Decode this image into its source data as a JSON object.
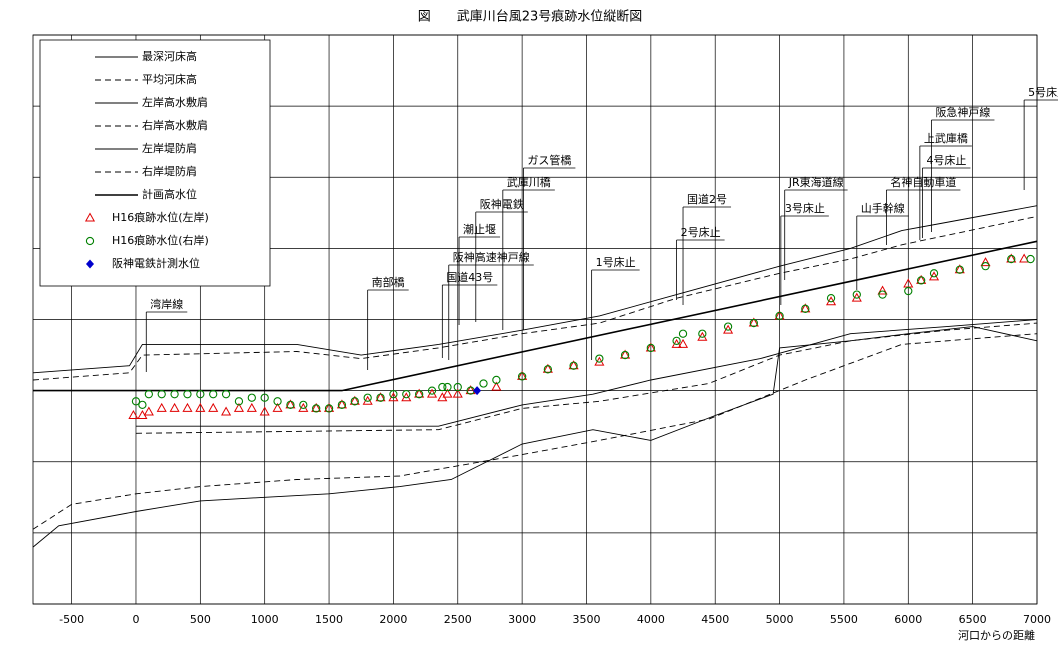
{
  "chart_data": {
    "type": "line",
    "title": "図　　武庫川台風23号痕跡水位縦断図",
    "x_label": "河口からの距離",
    "xlim": [
      -800,
      7000
    ],
    "xticks": [
      -500,
      0,
      500,
      1000,
      1500,
      2000,
      2500,
      3000,
      3500,
      4000,
      4500,
      5000,
      5500,
      6000,
      6500,
      7000
    ],
    "ylim": [
      -6,
      10
    ],
    "yticks": [
      -6,
      -4,
      -2,
      0,
      2,
      4,
      6,
      8,
      10
    ],
    "grid": true,
    "legend": "upper left",
    "series": [
      {
        "name": "最深河床高",
        "color": "#000000",
        "style": "solid",
        "x": [
          -800,
          -600,
          0,
          500,
          1000,
          1500,
          2050,
          2450,
          3000,
          3550,
          4000,
          4500,
          4950,
          5000,
          5550,
          6000,
          6500,
          7000
        ],
        "values": [
          -4.4,
          -3.8,
          -3.4,
          -3.1,
          -3.0,
          -2.9,
          -2.7,
          -2.5,
          -1.5,
          -1.1,
          -1.4,
          -0.7,
          -0.1,
          1.2,
          1.4,
          1.6,
          1.8,
          1.4
        ]
      },
      {
        "name": "平均河床高",
        "color": "#000000",
        "style": "dashed",
        "x": [
          -800,
          -500,
          0,
          500,
          1250,
          2050,
          3000,
          3600,
          4450,
          5200,
          5950,
          7000
        ],
        "values": [
          -3.9,
          -3.2,
          -2.9,
          -2.7,
          -2.5,
          -2.4,
          -1.8,
          -1.4,
          -0.8,
          0.3,
          1.3,
          1.6
        ]
      },
      {
        "name": "左岸高水敷肩",
        "color": "#000000",
        "style": "solid",
        "x": [
          0,
          2350,
          3000,
          3550,
          4000,
          4850,
          5550,
          6300,
          7000
        ],
        "values": [
          -1.0,
          -1.0,
          -0.4,
          -0.1,
          0.3,
          0.9,
          1.6,
          1.8,
          2.0
        ]
      },
      {
        "name": "右岸高水敷肩",
        "color": "#000000",
        "style": "dashed",
        "x": [
          0,
          2350,
          3000,
          3600,
          4450,
          5000,
          5550,
          6300,
          7000
        ],
        "values": [
          -1.2,
          -1.1,
          -0.5,
          -0.3,
          0.2,
          1.0,
          1.4,
          1.7,
          1.9
        ]
      },
      {
        "name": "左岸堤防肩",
        "color": "#000000",
        "style": "solid",
        "x": [
          -800,
          -50,
          50,
          1250,
          1750,
          2350,
          3000,
          3600,
          4200,
          5000,
          5550,
          5950,
          6250,
          7000
        ],
        "values": [
          0.5,
          0.7,
          1.3,
          1.3,
          1.0,
          1.3,
          1.7,
          2.1,
          2.7,
          3.5,
          4.0,
          4.5,
          4.7,
          5.2
        ]
      },
      {
        "name": "右岸堤防肩",
        "color": "#000000",
        "style": "dashed",
        "x": [
          -800,
          -50,
          50,
          1250,
          1750,
          2350,
          3000,
          3600,
          4200,
          5000,
          5550,
          5950,
          7000
        ],
        "values": [
          0.3,
          0.5,
          1.0,
          1.1,
          0.9,
          1.2,
          1.6,
          1.9,
          2.6,
          3.3,
          3.7,
          4.1,
          4.9
        ]
      },
      {
        "name": "計画高水位",
        "color": "#000000",
        "style": "solid",
        "width": 1.6,
        "x": [
          -800,
          1600,
          7000
        ],
        "values": [
          0,
          0,
          4.2
        ]
      },
      {
        "name": "H16痕跡水位(左岸)",
        "color": "#e00000",
        "marker": "triangle",
        "x": [
          -20,
          50,
          100,
          200,
          300,
          400,
          500,
          600,
          700,
          800,
          900,
          1000,
          1100,
          1200,
          1300,
          1400,
          1500,
          1600,
          1700,
          1800,
          1900,
          2000,
          2100,
          2200,
          2300,
          2380,
          2420,
          2500,
          2600,
          2800,
          3000,
          3200,
          3400,
          3600,
          3800,
          4000,
          4200,
          4250,
          4400,
          4600,
          4800,
          5000,
          5200,
          5400,
          5600,
          5800,
          6000,
          6100,
          6200,
          6400,
          6600,
          6800,
          6900
        ],
        "values": [
          -0.7,
          -0.7,
          -0.6,
          -0.5,
          -0.5,
          -0.5,
          -0.5,
          -0.5,
          -0.6,
          -0.5,
          -0.5,
          -0.6,
          -0.5,
          -0.4,
          -0.5,
          -0.5,
          -0.5,
          -0.4,
          -0.3,
          -0.3,
          -0.2,
          -0.2,
          -0.2,
          -0.1,
          -0.1,
          -0.2,
          -0.1,
          -0.1,
          0.0,
          0.1,
          0.4,
          0.6,
          0.7,
          0.8,
          1.0,
          1.2,
          1.3,
          1.3,
          1.5,
          1.7,
          1.9,
          2.1,
          2.3,
          2.5,
          2.6,
          2.8,
          3.0,
          3.1,
          3.2,
          3.4,
          3.6,
          3.7,
          3.7
        ]
      },
      {
        "name": "H16痕跡水位(右岸)",
        "color": "#008000",
        "marker": "circle",
        "x": [
          0,
          50,
          100,
          200,
          300,
          400,
          500,
          600,
          700,
          800,
          900,
          1000,
          1100,
          1200,
          1300,
          1400,
          1500,
          1600,
          1700,
          1800,
          1900,
          2000,
          2100,
          2200,
          2300,
          2380,
          2420,
          2500,
          2600,
          2700,
          2800,
          3000,
          3200,
          3400,
          3600,
          3800,
          4000,
          4200,
          4250,
          4400,
          4600,
          4800,
          5000,
          5200,
          5400,
          5600,
          5800,
          6000,
          6100,
          6200,
          6400,
          6600,
          6800,
          6950
        ],
        "values": [
          -0.3,
          -0.4,
          -0.1,
          -0.1,
          -0.1,
          -0.1,
          -0.1,
          -0.1,
          -0.1,
          -0.3,
          -0.2,
          -0.2,
          -0.3,
          -0.4,
          -0.4,
          -0.5,
          -0.5,
          -0.4,
          -0.3,
          -0.2,
          -0.2,
          -0.1,
          -0.1,
          -0.1,
          0.0,
          0.1,
          0.1,
          0.1,
          0.0,
          0.2,
          0.3,
          0.4,
          0.6,
          0.7,
          0.9,
          1.0,
          1.2,
          1.4,
          1.6,
          1.6,
          1.8,
          1.9,
          2.1,
          2.3,
          2.6,
          2.7,
          2.7,
          2.8,
          3.1,
          3.3,
          3.4,
          3.5,
          3.7,
          3.7
        ]
      },
      {
        "name": "阪神電鉄計測水位",
        "color": "#0000cc",
        "marker": "diamond",
        "x": [
          2650
        ],
        "values": [
          0.0
        ]
      }
    ],
    "annotations": [
      {
        "text": "湾岸線",
        "x": 80
      },
      {
        "text": "南部橋",
        "x": 1800
      },
      {
        "text": "国道43号",
        "x": 2380
      },
      {
        "text": "阪神高速神戸線",
        "x": 2430
      },
      {
        "text": "潮止堰",
        "x": 2510
      },
      {
        "text": "阪神電鉄",
        "x": 2640
      },
      {
        "text": "武庫川橋",
        "x": 2850
      },
      {
        "text": "ガス管橋",
        "x": 3010
      },
      {
        "text": "1号床止",
        "x": 3540
      },
      {
        "text": "2号床止",
        "x": 4200
      },
      {
        "text": "国道2号",
        "x": 4250
      },
      {
        "text": "3号床止",
        "x": 5010
      },
      {
        "text": "JR東海道線",
        "x": 5040
      },
      {
        "text": "山手幹線",
        "x": 5600
      },
      {
        "text": "名神自動車道",
        "x": 5830
      },
      {
        "text": "4号床止",
        "x": 6110
      },
      {
        "text": "上武庫橋",
        "x": 6090
      },
      {
        "text": "阪急神戸線",
        "x": 6180
      },
      {
        "text": "5号床止",
        "x": 6900
      }
    ]
  }
}
